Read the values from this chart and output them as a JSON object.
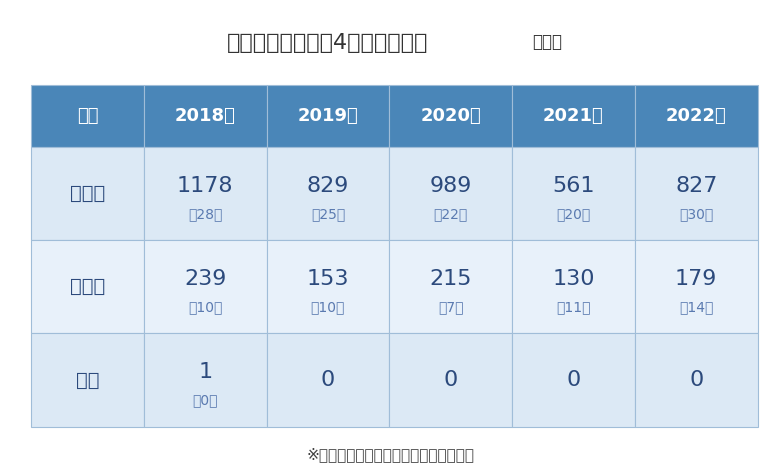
{
  "title": "熱中症による休業4日以上の推移",
  "title_unit": "（人）",
  "footnote": "※（　）内の数値は死亡の内数を示す。",
  "header": [
    "区分",
    "2018年",
    "2019年",
    "2020年",
    "2021年",
    "2022年"
  ],
  "rows": [
    {
      "label": "全産業",
      "values": [
        "1178",
        "829",
        "989",
        "561",
        "827"
      ],
      "sub_values": [
        "（28）",
        "（25）",
        "（22）",
        "（20）",
        "（30）"
      ]
    },
    {
      "label": "建設業",
      "values": [
        "239",
        "153",
        "215",
        "130",
        "179"
      ],
      "sub_values": [
        "（10）",
        "（10）",
        "（7）",
        "（11）",
        "（14）"
      ]
    },
    {
      "label": "当社",
      "values": [
        "1",
        "0",
        "0",
        "0",
        "0"
      ],
      "sub_values": [
        "（0）",
        "",
        "",
        "",
        ""
      ]
    }
  ],
  "header_bg": "#4a86b8",
  "header_text": "#ffffff",
  "row_bg_light": "#dce9f5",
  "row_bg_lighter": "#e8f1fa",
  "cell_text": "#2c4a7c",
  "sub_text": "#5a7ab0",
  "border_color": "#a0bdd8",
  "title_color": "#333333",
  "footnote_color": "#444444",
  "bg_color": "#ffffff"
}
